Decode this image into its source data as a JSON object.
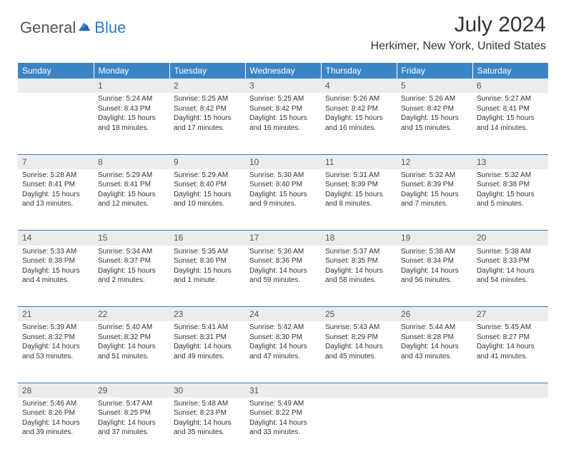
{
  "logo": {
    "text1": "General",
    "text2": "Blue"
  },
  "title": "July 2024",
  "location": "Herkimer, New York, United States",
  "colors": {
    "header_bg": "#3b85c7",
    "header_text": "#ffffff",
    "rule": "#2e7ac4",
    "daynum_bg": "#ececec",
    "text": "#333333",
    "logo_gray": "#555555",
    "logo_blue": "#2e7ac4"
  },
  "weekdays": [
    "Sunday",
    "Monday",
    "Tuesday",
    "Wednesday",
    "Thursday",
    "Friday",
    "Saturday"
  ],
  "weeks": [
    [
      {
        "n": "",
        "s": "",
        "ss": "",
        "d": ""
      },
      {
        "n": "1",
        "s": "Sunrise: 5:24 AM",
        "ss": "Sunset: 8:43 PM",
        "d": "Daylight: 15 hours and 18 minutes."
      },
      {
        "n": "2",
        "s": "Sunrise: 5:25 AM",
        "ss": "Sunset: 8:42 PM",
        "d": "Daylight: 15 hours and 17 minutes."
      },
      {
        "n": "3",
        "s": "Sunrise: 5:25 AM",
        "ss": "Sunset: 8:42 PM",
        "d": "Daylight: 15 hours and 16 minutes."
      },
      {
        "n": "4",
        "s": "Sunrise: 5:26 AM",
        "ss": "Sunset: 8:42 PM",
        "d": "Daylight: 15 hours and 16 minutes."
      },
      {
        "n": "5",
        "s": "Sunrise: 5:26 AM",
        "ss": "Sunset: 8:42 PM",
        "d": "Daylight: 15 hours and 15 minutes."
      },
      {
        "n": "6",
        "s": "Sunrise: 5:27 AM",
        "ss": "Sunset: 8:41 PM",
        "d": "Daylight: 15 hours and 14 minutes."
      }
    ],
    [
      {
        "n": "7",
        "s": "Sunrise: 5:28 AM",
        "ss": "Sunset: 8:41 PM",
        "d": "Daylight: 15 hours and 13 minutes."
      },
      {
        "n": "8",
        "s": "Sunrise: 5:29 AM",
        "ss": "Sunset: 8:41 PM",
        "d": "Daylight: 15 hours and 12 minutes."
      },
      {
        "n": "9",
        "s": "Sunrise: 5:29 AM",
        "ss": "Sunset: 8:40 PM",
        "d": "Daylight: 15 hours and 10 minutes."
      },
      {
        "n": "10",
        "s": "Sunrise: 5:30 AM",
        "ss": "Sunset: 8:40 PM",
        "d": "Daylight: 15 hours and 9 minutes."
      },
      {
        "n": "11",
        "s": "Sunrise: 5:31 AM",
        "ss": "Sunset: 8:39 PM",
        "d": "Daylight: 15 hours and 8 minutes."
      },
      {
        "n": "12",
        "s": "Sunrise: 5:32 AM",
        "ss": "Sunset: 8:39 PM",
        "d": "Daylight: 15 hours and 7 minutes."
      },
      {
        "n": "13",
        "s": "Sunrise: 5:32 AM",
        "ss": "Sunset: 8:38 PM",
        "d": "Daylight: 15 hours and 5 minutes."
      }
    ],
    [
      {
        "n": "14",
        "s": "Sunrise: 5:33 AM",
        "ss": "Sunset: 8:38 PM",
        "d": "Daylight: 15 hours and 4 minutes."
      },
      {
        "n": "15",
        "s": "Sunrise: 5:34 AM",
        "ss": "Sunset: 8:37 PM",
        "d": "Daylight: 15 hours and 2 minutes."
      },
      {
        "n": "16",
        "s": "Sunrise: 5:35 AM",
        "ss": "Sunset: 8:36 PM",
        "d": "Daylight: 15 hours and 1 minute."
      },
      {
        "n": "17",
        "s": "Sunrise: 5:36 AM",
        "ss": "Sunset: 8:36 PM",
        "d": "Daylight: 14 hours and 59 minutes."
      },
      {
        "n": "18",
        "s": "Sunrise: 5:37 AM",
        "ss": "Sunset: 8:35 PM",
        "d": "Daylight: 14 hours and 58 minutes."
      },
      {
        "n": "19",
        "s": "Sunrise: 5:38 AM",
        "ss": "Sunset: 8:34 PM",
        "d": "Daylight: 14 hours and 56 minutes."
      },
      {
        "n": "20",
        "s": "Sunrise: 5:38 AM",
        "ss": "Sunset: 8:33 PM",
        "d": "Daylight: 14 hours and 54 minutes."
      }
    ],
    [
      {
        "n": "21",
        "s": "Sunrise: 5:39 AM",
        "ss": "Sunset: 8:32 PM",
        "d": "Daylight: 14 hours and 53 minutes."
      },
      {
        "n": "22",
        "s": "Sunrise: 5:40 AM",
        "ss": "Sunset: 8:32 PM",
        "d": "Daylight: 14 hours and 51 minutes."
      },
      {
        "n": "23",
        "s": "Sunrise: 5:41 AM",
        "ss": "Sunset: 8:31 PM",
        "d": "Daylight: 14 hours and 49 minutes."
      },
      {
        "n": "24",
        "s": "Sunrise: 5:42 AM",
        "ss": "Sunset: 8:30 PM",
        "d": "Daylight: 14 hours and 47 minutes."
      },
      {
        "n": "25",
        "s": "Sunrise: 5:43 AM",
        "ss": "Sunset: 8:29 PM",
        "d": "Daylight: 14 hours and 45 minutes."
      },
      {
        "n": "26",
        "s": "Sunrise: 5:44 AM",
        "ss": "Sunset: 8:28 PM",
        "d": "Daylight: 14 hours and 43 minutes."
      },
      {
        "n": "27",
        "s": "Sunrise: 5:45 AM",
        "ss": "Sunset: 8:27 PM",
        "d": "Daylight: 14 hours and 41 minutes."
      }
    ],
    [
      {
        "n": "28",
        "s": "Sunrise: 5:46 AM",
        "ss": "Sunset: 8:26 PM",
        "d": "Daylight: 14 hours and 39 minutes."
      },
      {
        "n": "29",
        "s": "Sunrise: 5:47 AM",
        "ss": "Sunset: 8:25 PM",
        "d": "Daylight: 14 hours and 37 minutes."
      },
      {
        "n": "30",
        "s": "Sunrise: 5:48 AM",
        "ss": "Sunset: 8:23 PM",
        "d": "Daylight: 14 hours and 35 minutes."
      },
      {
        "n": "31",
        "s": "Sunrise: 5:49 AM",
        "ss": "Sunset: 8:22 PM",
        "d": "Daylight: 14 hours and 33 minutes."
      },
      {
        "n": "",
        "s": "",
        "ss": "",
        "d": ""
      },
      {
        "n": "",
        "s": "",
        "ss": "",
        "d": ""
      },
      {
        "n": "",
        "s": "",
        "ss": "",
        "d": ""
      }
    ]
  ]
}
